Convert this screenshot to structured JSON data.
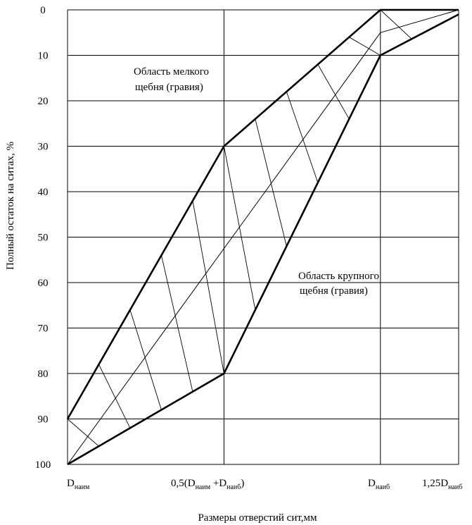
{
  "chart_data": {
    "type": "area",
    "title": "",
    "ylabel": "Полный остаток на ситах, %",
    "xlabel": "Размеры отверстий сит,мм",
    "ylim": [
      0,
      100
    ],
    "y_inverted": true,
    "y_ticks": [
      0,
      10,
      20,
      30,
      40,
      50,
      60,
      70,
      80,
      90,
      100
    ],
    "x_positions": [
      {
        "key": "d_min",
        "value": 0
      },
      {
        "key": "d_half",
        "value": 0.5
      },
      {
        "key": "d_max",
        "value": 1.0
      },
      {
        "key": "d_125",
        "value": 1.25
      }
    ],
    "x_tick_labels": [
      {
        "main": "D",
        "sub": "наим",
        "value": 0
      },
      {
        "parts": [
          {
            "t": "0,5(D"
          },
          {
            "t": "наим",
            "sub": true
          },
          {
            "t": " +D"
          },
          {
            "t": "наиб",
            "sub": true
          },
          {
            "t": ")"
          }
        ],
        "value": 0.5
      },
      {
        "main": "D",
        "sub": "наиб",
        "value": 1.0
      },
      {
        "main": "1,25D",
        "sub": "наиб",
        "value": 1.25
      }
    ],
    "series": [
      {
        "name": "upper_boundary",
        "points": [
          [
            0,
            90
          ],
          [
            0.5,
            30
          ],
          [
            1.0,
            0
          ],
          [
            1.25,
            0
          ]
        ]
      },
      {
        "name": "lower_boundary",
        "points": [
          [
            0,
            100
          ],
          [
            0.5,
            80
          ],
          [
            1.0,
            10
          ],
          [
            1.25,
            1
          ]
        ]
      },
      {
        "name": "middle_line",
        "points": [
          [
            0,
            100
          ],
          [
            1.0,
            5
          ],
          [
            1.25,
            0
          ]
        ]
      }
    ],
    "annotations": [
      {
        "lines": [
          "Область мелкого",
          "щебня (гравия)"
        ]
      },
      {
        "lines": [
          "Область крупного",
          "щебня (гравия)"
        ]
      }
    ]
  }
}
